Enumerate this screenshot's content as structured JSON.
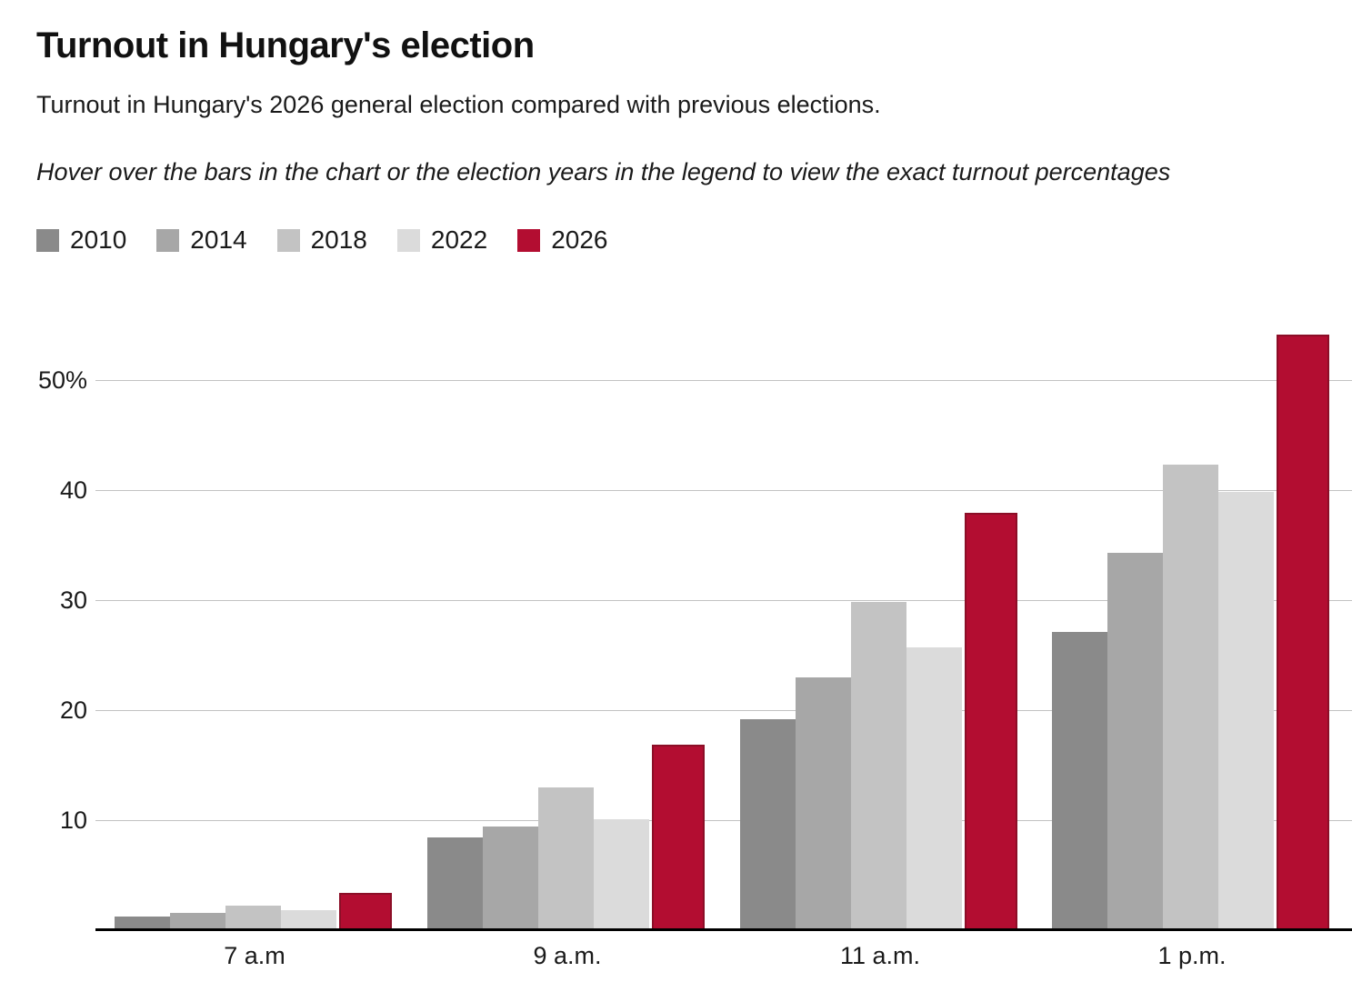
{
  "title": "Turnout in Hungary's election",
  "subtitle": "Turnout in Hungary's 2026 general election compared with previous elections.",
  "note": "Hover over the bars in the chart or the election years in the legend to view the exact turnout percentages",
  "colors": {
    "text": "#1a1a1a",
    "grid": "#c2c2c2",
    "axis": "#000000",
    "accent_red": "#b30d31",
    "accent_red_border": "#8c0e27"
  },
  "chart_data": {
    "type": "bar",
    "title": "Turnout in Hungary's election",
    "categories": [
      "7 a.m",
      "9 a.m.",
      "11 a.m.",
      "1 p.m."
    ],
    "series": [
      {
        "name": "2010",
        "color": "#8a8a8a",
        "values": [
          1.2,
          8.4,
          19.2,
          27.1
        ]
      },
      {
        "name": "2014",
        "color": "#a7a7a7",
        "values": [
          1.6,
          9.4,
          23.0,
          34.3
        ]
      },
      {
        "name": "2018",
        "color": "#c3c3c3",
        "values": [
          2.2,
          13.0,
          29.8,
          42.3
        ]
      },
      {
        "name": "2022",
        "color": "#dbdbdb",
        "values": [
          1.8,
          10.1,
          25.7,
          39.8
        ]
      },
      {
        "name": "2026",
        "color": "#b30d31",
        "values": [
          3.4,
          16.9,
          37.9,
          54.1
        ]
      }
    ],
    "xlabel": "",
    "ylabel": "",
    "unit": "%",
    "y_ticks": [
      "10",
      "20",
      "30",
      "40",
      "50%"
    ],
    "y_tick_values": [
      10,
      20,
      30,
      40,
      50
    ],
    "ylim": [
      0,
      55
    ],
    "grid": true,
    "legend_position": "top"
  }
}
